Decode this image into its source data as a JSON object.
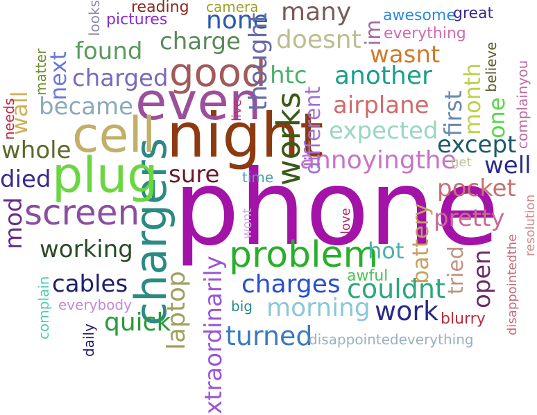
{
  "words": [
    {
      "text": "phone",
      "color": "#a313a8"
    },
    {
      "text": "chargers",
      "color": "#2b8a83"
    },
    {
      "text": "night",
      "color": "#8b3a12"
    },
    {
      "text": "even",
      "color": "#9b4f9b"
    },
    {
      "text": "cell",
      "color": "#c0b068"
    },
    {
      "text": "plug",
      "color": "#6ad640"
    },
    {
      "text": "good",
      "color": "#a05a5a"
    },
    {
      "text": "works",
      "color": "#3a5a17"
    },
    {
      "text": "screen",
      "color": "#8a4ea0"
    },
    {
      "text": "problem",
      "color": "#2aae2a"
    },
    {
      "text": "xtraordinarily",
      "color": "#9a55d6"
    },
    {
      "text": "annoyingthe",
      "color": "#c874c8"
    },
    {
      "text": "pocket",
      "color": "#c8706e"
    },
    {
      "text": "pretty",
      "color": "#c86a94"
    },
    {
      "text": "battery",
      "color": "#c8a060"
    },
    {
      "text": "charges",
      "color": "#2a4ed0"
    },
    {
      "text": "morning",
      "color": "#8ac8d8"
    },
    {
      "text": "couldnt",
      "color": "#2aa87a"
    },
    {
      "text": "work",
      "color": "#2a2a8a"
    },
    {
      "text": "turned",
      "color": "#3a7abd"
    },
    {
      "text": "quick",
      "color": "#2a9a3a"
    },
    {
      "text": "laptop",
      "color": "#a0a060"
    },
    {
      "text": "cables",
      "color": "#1e1e6e"
    },
    {
      "text": "working",
      "color": "#2a4a2a"
    },
    {
      "text": "mod",
      "color": "#6a2a8a"
    },
    {
      "text": "died",
      "color": "#3a2a8a"
    },
    {
      "text": "whole",
      "color": "#5a6a2a"
    },
    {
      "text": "became",
      "color": "#8aaabb"
    },
    {
      "text": "charged",
      "color": "#7a6abb"
    },
    {
      "text": "found",
      "color": "#5a9a5a"
    },
    {
      "text": "charge",
      "color": "#5a8a5a"
    },
    {
      "text": "none",
      "color": "#2a5ab0"
    },
    {
      "text": "many",
      "color": "#7a5a5a"
    },
    {
      "text": "doesnt",
      "color": "#c0bc90"
    },
    {
      "text": "thought",
      "color": "#6a6aaa"
    },
    {
      "text": "htc",
      "color": "#4ab06a"
    },
    {
      "text": "another",
      "color": "#1aa08a"
    },
    {
      "text": "airplane",
      "color": "#d06a6a"
    },
    {
      "text": "wasnt",
      "color": "#d07a2a"
    },
    {
      "text": "expected",
      "color": "#9ad6c0"
    },
    {
      "text": "different",
      "color": "#a070d6"
    },
    {
      "text": "first",
      "color": "#6a8ab0"
    },
    {
      "text": "month",
      "color": "#c0d04a"
    },
    {
      "text": "one",
      "color": "#5ad64a"
    },
    {
      "text": "except",
      "color": "#1a5a6a"
    },
    {
      "text": "well",
      "color": "#2a2a8a"
    },
    {
      "text": "sure",
      "color": "#6a1a2a"
    },
    {
      "text": "tried",
      "color": "#c09080"
    },
    {
      "text": "open",
      "color": "#6a2a6a"
    },
    {
      "text": "hot",
      "color": "#4ab0b0"
    },
    {
      "text": "awful",
      "color": "#4ac05a"
    },
    {
      "text": "blurry",
      "color": "#c02a3a"
    },
    {
      "text": "next",
      "color": "#6a7ad6"
    },
    {
      "text": "wall",
      "color": "#d0b05a"
    },
    {
      "text": "needs",
      "color": "#c02a4a"
    },
    {
      "text": "matter",
      "color": "#6a8a2a"
    },
    {
      "text": "looks",
      "color": "#8a8aaa"
    },
    {
      "text": "pictures",
      "color": "#8a2ad6"
    },
    {
      "text": "reading",
      "color": "#8a2a1a"
    },
    {
      "text": "camera",
      "color": "#a0a02a"
    },
    {
      "text": "awesome",
      "color": "#2a8ad6"
    },
    {
      "text": "great",
      "color": "#3a2a8a"
    },
    {
      "text": "everything",
      "color": "#d06ab0"
    },
    {
      "text": "im",
      "color": "#a06aa0"
    },
    {
      "text": "believe",
      "color": "#5a5a2a"
    },
    {
      "text": "complainyou",
      "color": "#c06aa0"
    },
    {
      "text": "resolution",
      "color": "#d08a8a"
    },
    {
      "text": "disappointedthe",
      "color": "#c86a7a"
    },
    {
      "text": "get",
      "color": "#c0c0a0"
    },
    {
      "text": "live",
      "color": "#c02a6a"
    },
    {
      "text": "time",
      "color": "#4aa0b0"
    },
    {
      "text": "wont",
      "color": "#d0b0e0"
    },
    {
      "text": "love",
      "color": "#b02a6a"
    },
    {
      "text": "disappointedeverything",
      "color": "#9ab0c0"
    },
    {
      "text": "big",
      "color": "#2a8a8a"
    },
    {
      "text": "everybody",
      "color": "#c08ad6"
    },
    {
      "text": "complain",
      "color": "#4ad0b0"
    },
    {
      "text": "daily",
      "color": "#1a1a6a"
    }
  ]
}
